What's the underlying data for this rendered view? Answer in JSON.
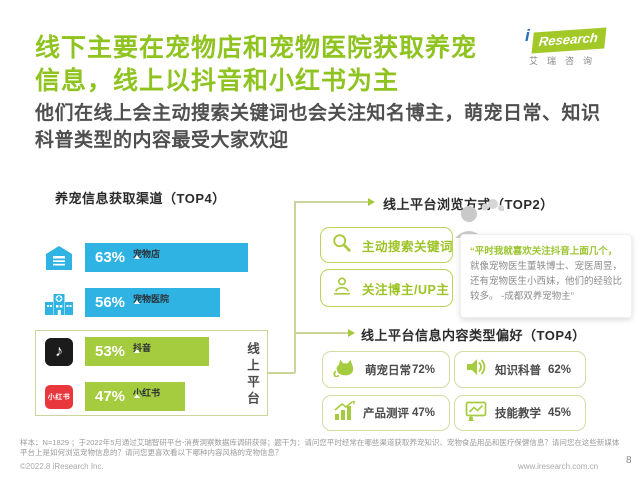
{
  "header": {
    "title_line1": "线下主要在宠物店和宠物医院获取养宠",
    "title_line2": "信息，线上以抖音和小红书为主",
    "subtitle": "他们在线上会主动搜索关键词也会关注知名博主，萌宠日常、知识科普类型的内容最受大家欢迎"
  },
  "logo": {
    "i": "i",
    "name": "Research",
    "cn": "艾瑞咨询"
  },
  "colors": {
    "title_green": "#8fc31f",
    "accent_green": "#a5cb3e",
    "bar_blue": "#2fb3e3",
    "connector_olive": "#cdd49b",
    "douyin_black": "#1b1b1b",
    "xiaohongshu_red": "#e8383d"
  },
  "left_chart": {
    "title": "养宠信息获取渠道（TOP4）",
    "group_label": "线上平台",
    "bars": [
      {
        "label": "宠物店",
        "value": "63%",
        "pct": 63,
        "icon": "store-icon"
      },
      {
        "label": "宠物医院",
        "value": "56%",
        "pct": 56,
        "icon": "hospital-icon"
      },
      {
        "label": "抖音",
        "value": "53%",
        "pct": 53,
        "icon": "douyin-icon"
      },
      {
        "label": "小红书",
        "value": "47%",
        "pct": 47,
        "icon": "xiaohongshu-icon"
      }
    ],
    "douyin_glyph": "♪",
    "xiaohongshu_chip_text": "小红书"
  },
  "browse_section": {
    "title": "线上平台浏览方式（TOP2）",
    "items": [
      {
        "label": "主动搜索关键词",
        "icon": "search-icon"
      },
      {
        "label": "关注博主/UP主",
        "icon": "blogger-icon"
      }
    ],
    "quote": {
      "highlight": "“平时我就喜欢关注抖音上面几个，",
      "rest": "就像宠物医生董轶博士、宠医周昱，还有宠物医生小西妹，他们的经验比较多。 -成都双养宠物主”"
    }
  },
  "content_section": {
    "title": "线上平台信息内容类型偏好（TOP4）",
    "items": [
      {
        "label": "萌宠日常",
        "value": "72%",
        "icon": "cat-icon"
      },
      {
        "label": "知识科普",
        "value": "62%",
        "icon": "speaker-icon"
      },
      {
        "label": "产品测评",
        "value": "47%",
        "icon": "chart-up-icon"
      },
      {
        "label": "技能教学",
        "value": "45%",
        "icon": "teaching-icon"
      }
    ]
  },
  "footer": {
    "footnote": "样本：N=1829 ；于2022年5月通过艾瑞智研平台-消费洞察数据库调研获得；题干为：请问您平时经常在哪些渠道获取养宠知识、宠物食品用品和医疗保健信息？请问您在这些新媒体平台上是如何浏览宠物信息的？请问您更喜欢看以下哪种内容风格的宠物信息？",
    "copyright": "©2022.8 iResearch Inc.",
    "website": "www.iresearch.com.cn",
    "page_number": "8"
  },
  "chart_data": [
    {
      "type": "bar",
      "title": "养宠信息获取渠道（TOP4）",
      "orientation": "horizontal",
      "categories": [
        "宠物店",
        "宠物医院",
        "抖音",
        "小红书"
      ],
      "values": [
        63,
        56,
        53,
        47
      ],
      "unit": "%",
      "bar_colors": [
        "#2fb3e3",
        "#2fb3e3",
        "#a5cb3e",
        "#a5cb3e"
      ],
      "group_annotation": {
        "label": "线上平台",
        "categories": [
          "抖音",
          "小红书"
        ]
      },
      "xlabel": "",
      "ylabel": "",
      "grid": false,
      "legend": "none"
    },
    {
      "type": "table",
      "title": "线上平台浏览方式（TOP2）",
      "categories": [
        "主动搜索关键词",
        "关注博主/UP主"
      ],
      "annotation": "“平时我就喜欢关注抖音上面几个，就像宠物医生董轶博士、宠医周昱，还有宠物医生小西妹，他们的经验比较多。 -成都双养宠物主”"
    },
    {
      "type": "bar",
      "title": "线上平台信息内容类型偏好（TOP4）",
      "categories": [
        "萌宠日常",
        "知识科普",
        "产品测评",
        "技能教学"
      ],
      "values": [
        72,
        62,
        47,
        45
      ],
      "unit": "%",
      "layout": "2x2-stat-grid"
    }
  ]
}
